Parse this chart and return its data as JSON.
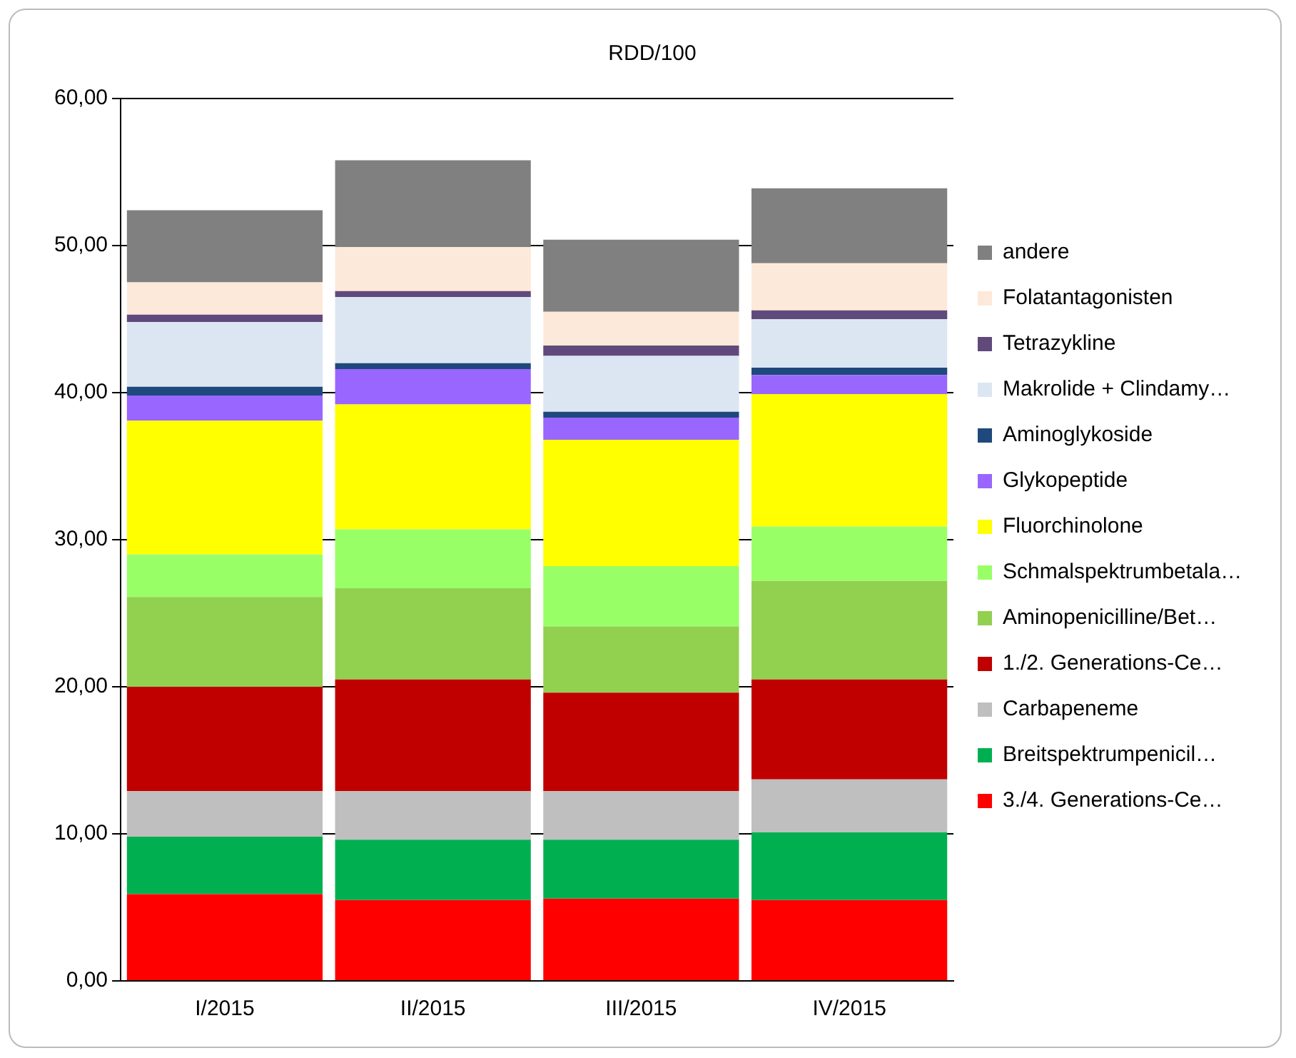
{
  "chart_data": {
    "type": "bar",
    "title": "RDD/100",
    "stacked": true,
    "categories": [
      "I/2015",
      "II/2015",
      "III/2015",
      "IV/2015"
    ],
    "series": [
      {
        "name": "3./4. Generations-Ce…",
        "color": "#ff0000",
        "values": [
          5.9,
          5.5,
          5.6,
          5.5
        ]
      },
      {
        "name": "Breitspektrumpenicil…",
        "color": "#00b050",
        "values": [
          3.9,
          4.1,
          4.0,
          4.6
        ]
      },
      {
        "name": "Carbapeneme",
        "color": "#bfbfbf",
        "values": [
          3.1,
          3.3,
          3.3,
          3.6
        ]
      },
      {
        "name": "1./2. Generations-Ce…",
        "color": "#c00000",
        "values": [
          7.1,
          7.6,
          6.7,
          6.8
        ]
      },
      {
        "name": "Aminopenicilline/Bet…",
        "color": "#92d050",
        "values": [
          6.1,
          6.2,
          4.5,
          6.7
        ]
      },
      {
        "name": "Schmalspektrumbetala…",
        "color": "#99ff66",
        "values": [
          2.9,
          4.0,
          4.1,
          3.7
        ]
      },
      {
        "name": "Fluorchinolone",
        "color": "#ffff00",
        "values": [
          9.1,
          8.5,
          8.6,
          9.0
        ]
      },
      {
        "name": "Glykopeptide",
        "color": "#9966ff",
        "values": [
          1.7,
          2.4,
          1.5,
          1.3
        ]
      },
      {
        "name": "Aminoglykoside",
        "color": "#1f497d",
        "values": [
          0.6,
          0.4,
          0.4,
          0.5
        ]
      },
      {
        "name": "Makrolide + Clindamy…",
        "color": "#dce6f2",
        "values": [
          4.4,
          4.5,
          3.8,
          3.3
        ]
      },
      {
        "name": "Tetrazykline",
        "color": "#604a7b",
        "values": [
          0.5,
          0.4,
          0.7,
          0.6
        ]
      },
      {
        "name": "Folatantagonisten",
        "color": "#fde9d9",
        "values": [
          2.2,
          3.0,
          2.3,
          3.2
        ]
      },
      {
        "name": "andere",
        "color": "#808080",
        "values": [
          4.9,
          5.9,
          4.9,
          5.1
        ]
      }
    ],
    "ylim": [
      0,
      60
    ],
    "yticks": [
      {
        "value": 0,
        "label": "0,00"
      },
      {
        "value": 10,
        "label": "10,00"
      },
      {
        "value": 20,
        "label": "20,00"
      },
      {
        "value": 30,
        "label": "30,00"
      },
      {
        "value": 40,
        "label": "40,00"
      },
      {
        "value": 50,
        "label": "50,00"
      },
      {
        "value": 60,
        "label": "60,00"
      }
    ],
    "grid": "y",
    "legend": "right"
  }
}
